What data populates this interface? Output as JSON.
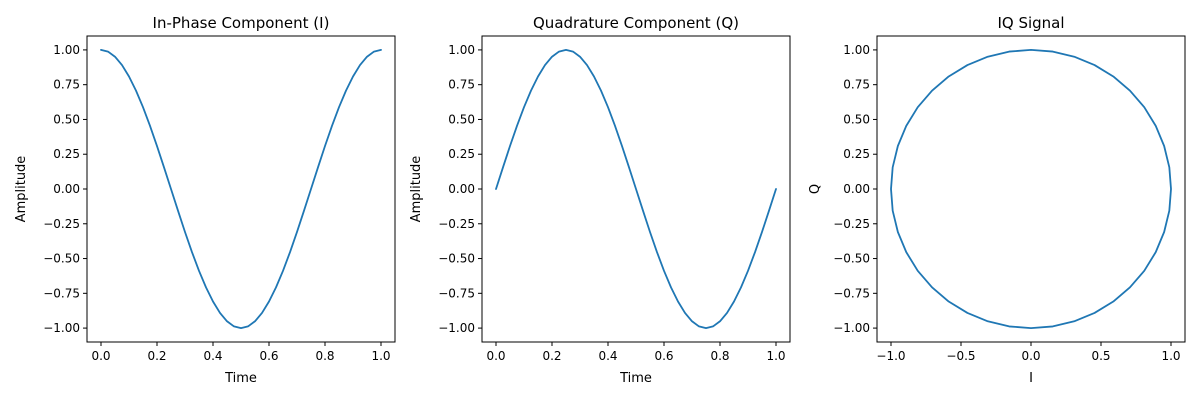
{
  "chart_data": [
    {
      "type": "line",
      "title": "In-Phase Component (I)",
      "xlabel": "Time",
      "ylabel": "Amplitude",
      "xlim": [
        -0.05,
        1.05
      ],
      "ylim": [
        -1.1,
        1.1
      ],
      "xticks": [
        0.0,
        0.2,
        0.4,
        0.6,
        0.8,
        1.0
      ],
      "xtick_labels": [
        "0.0",
        "0.2",
        "0.4",
        "0.6",
        "0.8",
        "1.0"
      ],
      "yticks": [
        1.0,
        0.75,
        0.5,
        0.25,
        0.0,
        -0.25,
        -0.5,
        -0.75,
        -1.0
      ],
      "ytick_labels": [
        "1.00",
        "0.75",
        "0.50",
        "0.25",
        "0.00",
        "−0.25",
        "−0.50",
        "−0.75",
        "−1.00"
      ],
      "grid": false,
      "series": [
        {
          "color": "#1f77b4",
          "x": [
            0.0,
            0.025,
            0.05,
            0.075,
            0.1,
            0.125,
            0.15,
            0.175,
            0.2,
            0.225,
            0.25,
            0.275,
            0.3,
            0.325,
            0.35,
            0.375,
            0.4,
            0.425,
            0.45,
            0.475,
            0.5,
            0.525,
            0.55,
            0.575,
            0.6,
            0.625,
            0.65,
            0.675,
            0.7,
            0.725,
            0.75,
            0.775,
            0.8,
            0.825,
            0.85,
            0.875,
            0.9,
            0.925,
            0.95,
            0.975,
            1.0
          ],
          "y": [
            1.0,
            0.988,
            0.951,
            0.891,
            0.809,
            0.707,
            0.588,
            0.454,
            0.309,
            0.156,
            0.0,
            -0.156,
            -0.309,
            -0.454,
            -0.588,
            -0.707,
            -0.809,
            -0.891,
            -0.951,
            -0.988,
            -1.0,
            -0.988,
            -0.951,
            -0.891,
            -0.809,
            -0.707,
            -0.588,
            -0.454,
            -0.309,
            -0.156,
            0.0,
            0.156,
            0.309,
            0.454,
            0.588,
            0.707,
            0.809,
            0.891,
            0.951,
            0.988,
            1.0
          ]
        }
      ]
    },
    {
      "type": "line",
      "title": "Quadrature Component (Q)",
      "xlabel": "Time",
      "ylabel": "Amplitude",
      "xlim": [
        -0.05,
        1.05
      ],
      "ylim": [
        -1.1,
        1.1
      ],
      "xticks": [
        0.0,
        0.2,
        0.4,
        0.6,
        0.8,
        1.0
      ],
      "xtick_labels": [
        "0.0",
        "0.2",
        "0.4",
        "0.6",
        "0.8",
        "1.0"
      ],
      "yticks": [
        1.0,
        0.75,
        0.5,
        0.25,
        0.0,
        -0.25,
        -0.5,
        -0.75,
        -1.0
      ],
      "ytick_labels": [
        "1.00",
        "0.75",
        "0.50",
        "0.25",
        "0.00",
        "−0.25",
        "−0.50",
        "−0.75",
        "−1.00"
      ],
      "grid": false,
      "series": [
        {
          "color": "#1f77b4",
          "x": [
            0.0,
            0.025,
            0.05,
            0.075,
            0.1,
            0.125,
            0.15,
            0.175,
            0.2,
            0.225,
            0.25,
            0.275,
            0.3,
            0.325,
            0.35,
            0.375,
            0.4,
            0.425,
            0.45,
            0.475,
            0.5,
            0.525,
            0.55,
            0.575,
            0.6,
            0.625,
            0.65,
            0.675,
            0.7,
            0.725,
            0.75,
            0.775,
            0.8,
            0.825,
            0.85,
            0.875,
            0.9,
            0.925,
            0.95,
            0.975,
            1.0
          ],
          "y": [
            0.0,
            0.156,
            0.309,
            0.454,
            0.588,
            0.707,
            0.809,
            0.891,
            0.951,
            0.988,
            1.0,
            0.988,
            0.951,
            0.891,
            0.809,
            0.707,
            0.588,
            0.454,
            0.309,
            0.156,
            0.0,
            -0.156,
            -0.309,
            -0.454,
            -0.588,
            -0.707,
            -0.809,
            -0.891,
            -0.951,
            -0.988,
            -1.0,
            -0.988,
            -0.951,
            -0.891,
            -0.809,
            -0.707,
            -0.588,
            -0.454,
            -0.309,
            -0.156,
            0.0
          ]
        }
      ]
    },
    {
      "type": "line",
      "title": "IQ Signal",
      "xlabel": "I",
      "ylabel": "Q",
      "xlim": [
        -1.1,
        1.1
      ],
      "ylim": [
        -1.1,
        1.1
      ],
      "xticks": [
        -1.0,
        -0.5,
        0.0,
        0.5,
        1.0
      ],
      "xtick_labels": [
        "−1.0",
        "−0.5",
        "0.0",
        "0.5",
        "1.0"
      ],
      "yticks": [
        1.0,
        0.75,
        0.5,
        0.25,
        0.0,
        -0.25,
        -0.5,
        -0.75,
        -1.0
      ],
      "ytick_labels": [
        "1.00",
        "0.75",
        "0.50",
        "0.25",
        "0.00",
        "−0.25",
        "−0.50",
        "−0.75",
        "−1.00"
      ],
      "grid": false,
      "series": [
        {
          "color": "#1f77b4",
          "x": [
            1.0,
            0.988,
            0.951,
            0.891,
            0.809,
            0.707,
            0.588,
            0.454,
            0.309,
            0.156,
            0.0,
            -0.156,
            -0.309,
            -0.454,
            -0.588,
            -0.707,
            -0.809,
            -0.891,
            -0.951,
            -0.988,
            -1.0,
            -0.988,
            -0.951,
            -0.891,
            -0.809,
            -0.707,
            -0.588,
            -0.454,
            -0.309,
            -0.156,
            0.0,
            0.156,
            0.309,
            0.454,
            0.588,
            0.707,
            0.809,
            0.891,
            0.951,
            0.988,
            1.0
          ],
          "y": [
            0.0,
            0.156,
            0.309,
            0.454,
            0.588,
            0.707,
            0.809,
            0.891,
            0.951,
            0.988,
            1.0,
            0.988,
            0.951,
            0.891,
            0.809,
            0.707,
            0.588,
            0.454,
            0.309,
            0.156,
            0.0,
            -0.156,
            -0.309,
            -0.454,
            -0.588,
            -0.707,
            -0.809,
            -0.891,
            -0.951,
            -0.988,
            -1.0,
            -0.988,
            -0.951,
            -0.891,
            -0.809,
            -0.707,
            -0.588,
            -0.454,
            -0.309,
            -0.156,
            0.0
          ]
        }
      ]
    }
  ]
}
